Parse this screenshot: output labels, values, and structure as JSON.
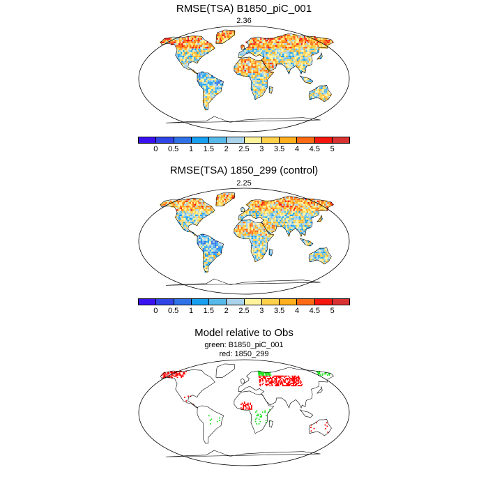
{
  "panels": [
    {
      "title": "RMSE(TSA) B1850_piC_001",
      "value": "2.36"
    },
    {
      "title": "RMSE(TSA) 1850_299 (control)",
      "value": "2.25"
    }
  ],
  "colorbar": {
    "labels": [
      "0",
      "0.5",
      "1",
      "1.5",
      "2",
      "2.5",
      "3",
      "3.5",
      "4",
      "4.5",
      "5"
    ],
    "colors": [
      "#3a12f2",
      "#2f45e6",
      "#2f72e8",
      "#169ef0",
      "#57b9ea",
      "#a8d3ea",
      "#fff39c",
      "#ffd04a",
      "#ffae1e",
      "#ff6a14",
      "#f5160e",
      "#d83232"
    ]
  },
  "comparison": {
    "title": "Model relative to Obs",
    "green_label": "green: B1850_piC_001",
    "red_label": "red: 1850_299",
    "colors": {
      "green": "#22e322",
      "red": "#ff0000"
    }
  }
}
